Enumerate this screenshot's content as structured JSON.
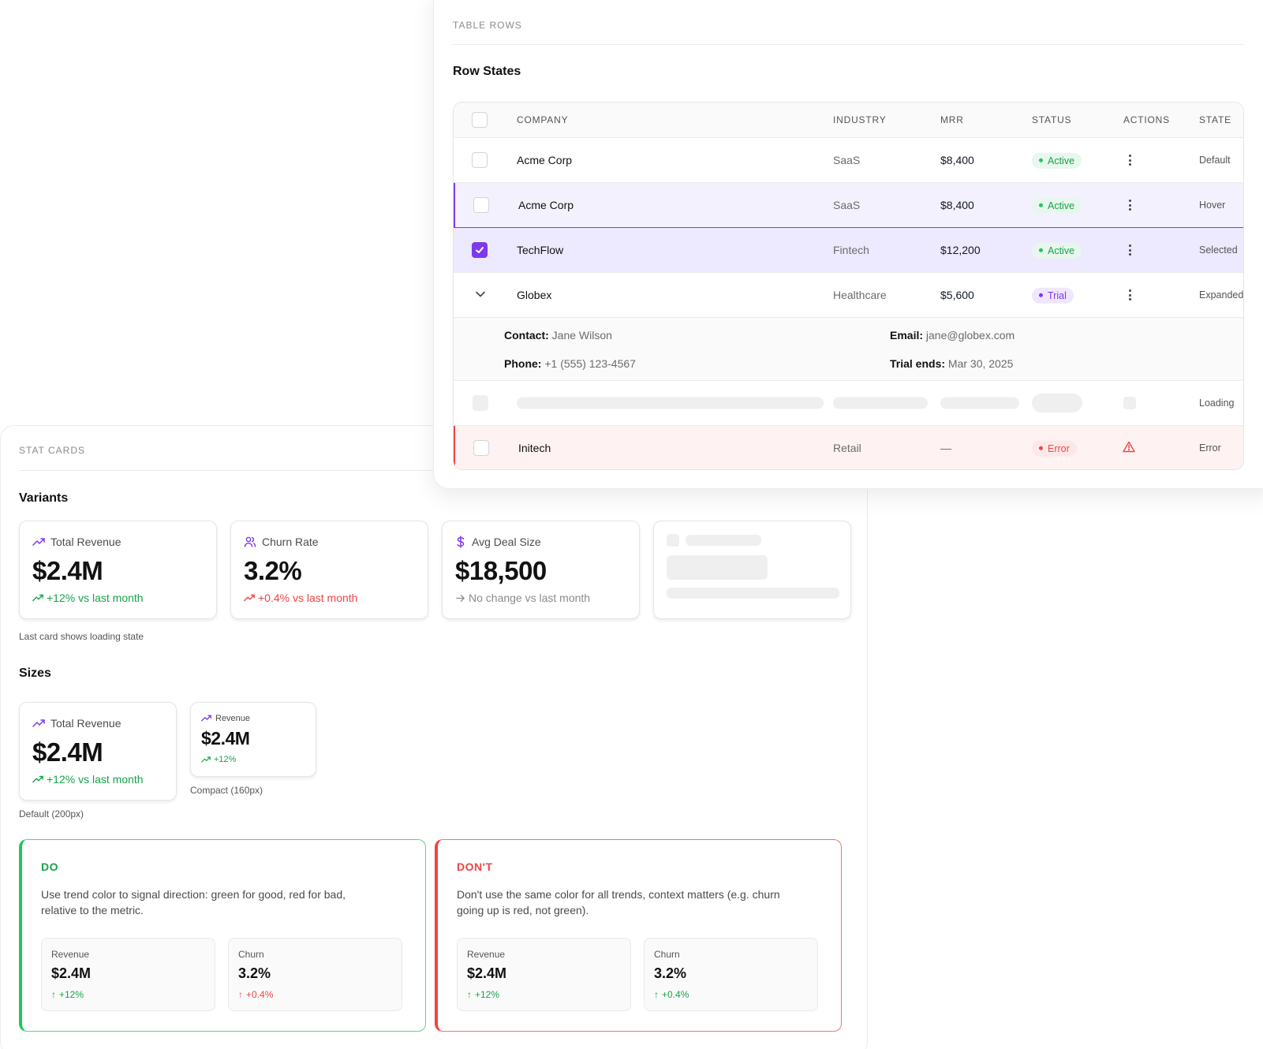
{
  "stat_cards": {
    "section_label": "STAT CARDS",
    "variants_title": "Variants",
    "variants": [
      {
        "label": "Total Revenue",
        "icon": "trending-up-icon",
        "value": "$2.4M",
        "trend": "+12% vs last month",
        "trend_color": "#16a34a"
      },
      {
        "label": "Churn Rate",
        "icon": "users-icon",
        "value": "3.2%",
        "trend": "+0.4% vs last month",
        "trend_color": "#ef4444"
      },
      {
        "label": "Avg Deal Size",
        "icon": "dollar-icon",
        "value": "$18,500",
        "trend": "No change vs last month",
        "trend_color": "#8b8b8b"
      }
    ],
    "variants_caption": "Last card shows loading state",
    "sizes_title": "Sizes",
    "size_default": {
      "label": "Total Revenue",
      "value": "$2.4M",
      "trend": "+12% vs last month",
      "caption": "Default (200px)"
    },
    "size_compact": {
      "label": "Revenue",
      "value": "$2.4M",
      "trend": "+12%",
      "caption": "Compact (160px)"
    },
    "do": {
      "title": "DO",
      "text": "Use trend color to signal direction: green for good, red for bad, relative to the metric.",
      "examples": [
        {
          "label": "Revenue",
          "value": "$2.4M",
          "trend": "+12%"
        },
        {
          "label": "Churn",
          "value": "3.2%",
          "trend": "+0.4%"
        }
      ]
    },
    "dont": {
      "title": "DON'T",
      "text": "Don't use the same color for all trends, context matters (e.g. churn going up is red, not green).",
      "examples": [
        {
          "label": "Revenue",
          "value": "$2.4M",
          "trend": "+12%"
        },
        {
          "label": "Churn",
          "value": "3.2%",
          "trend": "+0.4%"
        }
      ]
    },
    "colors": {
      "good": "#16a34a",
      "bad": "#ef4444",
      "accent": "#7c3aed"
    }
  },
  "table_rows": {
    "section_label": "TABLE ROWS",
    "title": "Row States",
    "columns": [
      "COMPANY",
      "INDUSTRY",
      "MRR",
      "STATUS",
      "ACTIONS",
      "STATE"
    ],
    "rows": [
      {
        "company": "Acme Corp",
        "industry": "SaaS",
        "mrr": "$8,400",
        "status": "Active",
        "state": "Default"
      },
      {
        "company": "Acme Corp",
        "industry": "SaaS",
        "mrr": "$8,400",
        "status": "Active",
        "state": "Hover"
      },
      {
        "company": "TechFlow",
        "industry": "Fintech",
        "mrr": "$12,200",
        "status": "Active",
        "state": "Selected"
      },
      {
        "company": "Globex",
        "industry": "Healthcare",
        "mrr": "$5,600",
        "status": "Trial",
        "state": "Expanded"
      },
      {
        "state": "Loading"
      },
      {
        "company": "Initech",
        "industry": "Retail",
        "mrr": "—",
        "status": "Error",
        "state": "Error"
      }
    ],
    "expanded_details": {
      "contact_label": "Contact:",
      "contact": "Jane Wilson",
      "email_label": "Email:",
      "email": "jane@globex.com",
      "phone_label": "Phone:",
      "phone": "+1 (555) 123-4567",
      "trial_label": "Trial ends:",
      "trial": "Mar 30, 2025"
    }
  }
}
